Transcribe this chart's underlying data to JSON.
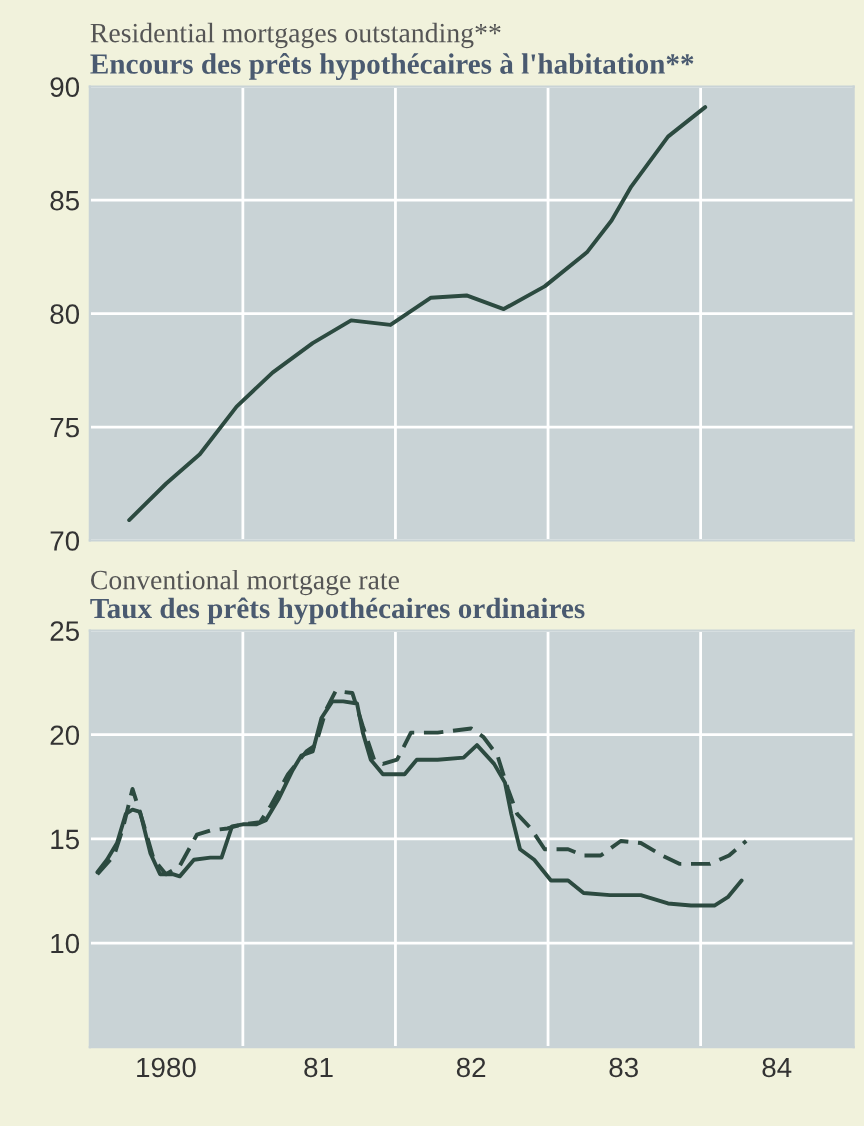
{
  "chart_data": [
    {
      "type": "line",
      "title": "Residential mortgages outstanding**",
      "subtitle": "Encours des prêts hypothécaires à l'habitation**",
      "xlim": [
        "1980-01-01",
        "1985-01-01"
      ],
      "ylim": [
        70,
        90
      ],
      "yticks": [
        70,
        75,
        80,
        85,
        90
      ],
      "tick_labels": "y",
      "grid": true,
      "series": [
        {
          "color": "#2c4a40",
          "line_style": "solid",
          "x": [
            "1980-04-04",
            "1980-07-01",
            "1980-09-20",
            "1980-12-17",
            "1981-03-13",
            "1981-06-17",
            "1981-09-17",
            "1981-12-20",
            "1982-03-27",
            "1982-06-20",
            "1982-09-17",
            "1982-12-24",
            "1983-04-04",
            "1983-06-02",
            "1983-07-19",
            "1983-10-15",
            "1984-01-12"
          ],
          "values": [
            70.9,
            72.5,
            73.8,
            75.9,
            77.4,
            78.7,
            79.7,
            79.5,
            80.7,
            80.8,
            80.2,
            81.2,
            82.7,
            84.1,
            85.6,
            87.8,
            89.1
          ]
        }
      ]
    },
    {
      "type": "line",
      "title": "Conventional mortgage rate",
      "subtitle": "Taux des prêts hypothécaires ordinaires",
      "xlim": [
        "1980-01-01",
        "1985-01-01"
      ],
      "xticks": [
        {
          "value": "1980-07-01",
          "label": "1980"
        },
        {
          "value": "1981-01-01",
          "label": null
        },
        {
          "value": "1981-07-01",
          "label": "81"
        },
        {
          "value": "1982-01-01",
          "label": null
        },
        {
          "value": "1982-07-01",
          "label": "82"
        },
        {
          "value": "1983-01-01",
          "label": null
        },
        {
          "value": "1983-07-01",
          "label": "83"
        },
        {
          "value": "1984-01-01",
          "label": null
        },
        {
          "value": "1984-07-01",
          "label": "84"
        }
      ],
      "ylim": [
        5,
        25
      ],
      "yticks": [
        10,
        15,
        20,
        25
      ],
      "grid": true,
      "series": [
        {
          "color": "#2c4a40",
          "line_style": "solid",
          "x": [
            "1980-01-19",
            "1980-02-11",
            "1980-03-06",
            "1980-03-27",
            "1980-04-12",
            "1980-04-30",
            "1980-05-25",
            "1980-06-17",
            "1980-07-19",
            "1980-08-03",
            "1980-09-06",
            "1980-10-15",
            "1980-11-11",
            "1980-12-06",
            "1981-01-01",
            "1981-02-03",
            "1981-02-25",
            "1981-03-27",
            "1981-04-30",
            "1981-05-21",
            "1981-06-17",
            "1981-07-08",
            "1981-08-03",
            "1981-08-29",
            "1981-10-01",
            "1981-10-15",
            "1981-11-03",
            "1981-12-02",
            "1982-01-23",
            "1982-02-21",
            "1982-04-12",
            "1982-06-13",
            "1982-07-15",
            "1982-08-25",
            "1982-09-20",
            "1982-10-05",
            "1982-10-26",
            "1982-11-29",
            "1983-01-08",
            "1983-02-18",
            "1983-03-27",
            "1983-05-29",
            "1983-08-11",
            "1983-10-15",
            "1983-12-09",
            "1984-02-03",
            "1984-03-06",
            "1984-04-08"
          ],
          "values": [
            13.4,
            14.0,
            14.8,
            16.2,
            16.4,
            16.3,
            14.3,
            13.3,
            13.3,
            13.2,
            14.0,
            14.1,
            14.1,
            15.6,
            15.7,
            15.7,
            15.9,
            16.9,
            18.3,
            19.0,
            19.2,
            20.8,
            21.6,
            21.6,
            21.5,
            20.1,
            18.8,
            18.1,
            18.1,
            18.8,
            18.8,
            18.9,
            19.5,
            18.6,
            17.7,
            16.2,
            14.5,
            14.0,
            13.0,
            13.0,
            12.4,
            12.3,
            12.3,
            11.9,
            11.8,
            11.8,
            12.2,
            13.0
          ]
        },
        {
          "color": "#2c4a40",
          "line_style": "dashed",
          "x": [
            "1980-01-19",
            "1980-02-28",
            "1980-03-20",
            "1980-04-12",
            "1980-05-07",
            "1980-06-02",
            "1980-07-01",
            "1980-08-03",
            "1980-09-13",
            "1980-10-15",
            "1980-11-25",
            "1981-01-01",
            "1981-02-11",
            "1981-03-09",
            "1981-04-19",
            "1981-06-02",
            "1981-06-24",
            "1981-07-19",
            "1981-08-11",
            "1981-09-20",
            "1981-10-15",
            "1981-11-11",
            "1981-12-02",
            "1982-01-05",
            "1982-02-07",
            "1982-04-12",
            "1982-07-01",
            "1982-07-30",
            "1982-09-02",
            "1982-09-27",
            "1982-10-19",
            "1982-11-21",
            "1982-12-24",
            "1983-02-18",
            "1983-03-27",
            "1983-05-07",
            "1983-06-24",
            "1983-08-11",
            "1983-10-01",
            "1983-11-11",
            "1984-01-23",
            "1984-03-09",
            "1984-04-19"
          ],
          "values": [
            13.3,
            14.2,
            15.5,
            17.4,
            15.8,
            14.0,
            13.3,
            13.7,
            15.2,
            15.4,
            15.5,
            15.7,
            15.8,
            16.6,
            18.1,
            19.2,
            19.5,
            21.2,
            22.1,
            22.0,
            20.4,
            18.8,
            18.6,
            18.8,
            20.1,
            20.1,
            20.3,
            19.9,
            19.0,
            17.4,
            16.2,
            15.5,
            14.5,
            14.5,
            14.2,
            14.2,
            14.9,
            14.8,
            14.2,
            13.8,
            13.8,
            14.2,
            14.9
          ]
        }
      ]
    }
  ]
}
